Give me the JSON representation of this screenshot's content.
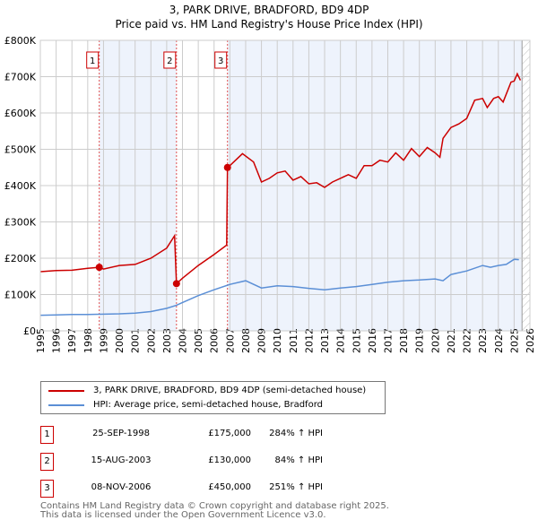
{
  "chart_data": {
    "type": "line",
    "title": "3, PARK DRIVE, BRADFORD, BD9 4DP",
    "subtitle": "Price paid vs. HM Land Registry's House Price Index (HPI)",
    "xlim": [
      1995,
      2026
    ],
    "ylim": [
      0,
      800000
    ],
    "x_ticks": [
      "1995",
      "1996",
      "1997",
      "1998",
      "1999",
      "2000",
      "2001",
      "2002",
      "2003",
      "2004",
      "2005",
      "2006",
      "2007",
      "2008",
      "2009",
      "2010",
      "2011",
      "2012",
      "2013",
      "2014",
      "2015",
      "2016",
      "2017",
      "2018",
      "2019",
      "2020",
      "2021",
      "2022",
      "2023",
      "2024",
      "2025",
      "2026"
    ],
    "y_ticks": [
      "£0",
      "£100K",
      "£200K",
      "£300K",
      "£400K",
      "£500K",
      "£600K",
      "£700K",
      "£800K"
    ],
    "grid": true,
    "series": [
      {
        "name": "3, PARK DRIVE, BRADFORD, BD9 4DP (semi-detached house)",
        "color": "#cc0000",
        "x": [
          1995,
          1996,
          1997,
          1998,
          1998.73,
          1999,
          2000,
          2001,
          2002,
          2003,
          2003.5,
          2003.62,
          2004,
          2005,
          2006,
          2006.8,
          2006.85,
          2007,
          2007.8,
          2008.5,
          2009,
          2009.5,
          2010,
          2010.5,
          2011,
          2011.5,
          2012,
          2012.5,
          2013,
          2013.5,
          2014,
          2014.5,
          2015,
          2015.5,
          2016,
          2016.5,
          2017,
          2017.5,
          2018,
          2018.5,
          2019,
          2019.5,
          2020,
          2020.3,
          2020.5,
          2021,
          2021.5,
          2022,
          2022.5,
          2023,
          2023.3,
          2023.7,
          2024,
          2024.3,
          2024.8,
          2025,
          2025.2,
          2025.4
        ],
        "y": [
          163000,
          166000,
          167000,
          172000,
          175000,
          170000,
          180000,
          183000,
          200000,
          228000,
          262000,
          130000,
          145000,
          180000,
          210000,
          236000,
          450000,
          455000,
          488000,
          465000,
          410000,
          420000,
          435000,
          440000,
          415000,
          425000,
          405000,
          408000,
          395000,
          410000,
          420000,
          430000,
          420000,
          455000,
          455000,
          470000,
          465000,
          490000,
          470000,
          502000,
          480000,
          505000,
          490000,
          478000,
          530000,
          560000,
          570000,
          585000,
          635000,
          640000,
          615000,
          640000,
          645000,
          630000,
          685000,
          688000,
          708000,
          690000
        ]
      },
      {
        "name": "HPI: Average price, semi-detached house, Bradford",
        "color": "#5b8fd6",
        "x": [
          1995,
          1996,
          1997,
          1998,
          1999,
          2000,
          2001,
          2002,
          2003,
          2003.6,
          2004,
          2005,
          2006,
          2007,
          2008,
          2009,
          2010,
          2011,
          2012,
          2013,
          2014,
          2015,
          2016,
          2017,
          2018,
          2019,
          2020,
          2020.5,
          2021,
          2022,
          2023,
          2023.5,
          2024,
          2024.5,
          2025,
          2025.3
        ],
        "y": [
          43000,
          44000,
          45000,
          45000,
          46000,
          47000,
          49000,
          53000,
          62000,
          70000,
          78000,
          97000,
          113000,
          128000,
          138000,
          118000,
          124000,
          122000,
          117000,
          113000,
          118000,
          122000,
          128000,
          134000,
          138000,
          140000,
          143000,
          138000,
          155000,
          165000,
          180000,
          175000,
          180000,
          183000,
          197000,
          196000
        ]
      }
    ],
    "sales": [
      {
        "label": "1",
        "x": 1998.73,
        "y": 175000,
        "date": "25-SEP-1998",
        "price": "£175,000",
        "hpi": "284% ↑ HPI"
      },
      {
        "label": "2",
        "x": 2003.62,
        "y": 130000,
        "date": "15-AUG-2003",
        "price": "£130,000",
        "hpi": "84% ↑ HPI"
      },
      {
        "label": "3",
        "x": 2006.85,
        "y": 450000,
        "date": "08-NOV-2006",
        "price": "£450,000",
        "hpi": "251% ↑ HPI"
      }
    ],
    "forecast_hatch_from": 2025.5,
    "legend_placement": "below"
  },
  "footer": {
    "line1": "Contains HM Land Registry data © Crown copyright and database right 2025.",
    "line2": "This data is licensed under the Open Government Licence v3.0."
  }
}
